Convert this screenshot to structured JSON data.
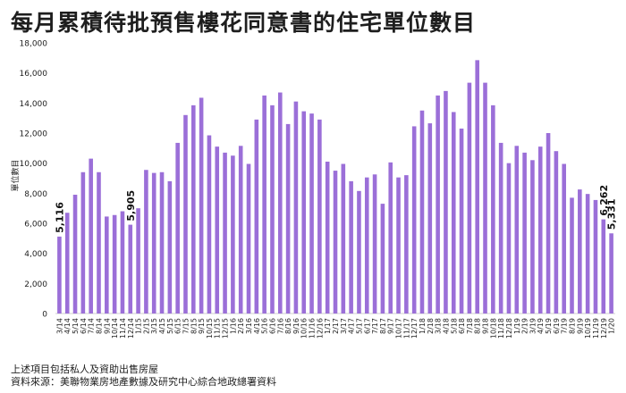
{
  "title": "每月累積待批預售樓花同意書的住宅單位數目",
  "notes": {
    "line1": "上述項目包括私人及資助出售房屋",
    "line2": "資料來源：美聯物業房地產數據及研究中心綜合地政總署資料"
  },
  "colors": {
    "bar": "#9b6fd8",
    "text": "#222222",
    "axis": "#cfcfcf"
  },
  "chart_data": {
    "type": "bar",
    "title": "每月累積待批預售樓花同意書的住宅單位數目",
    "ylabel": "單位數目",
    "xlabel": "",
    "ylim": [
      0,
      18000
    ],
    "yticks": [
      0,
      2000,
      4000,
      6000,
      8000,
      10000,
      12000,
      14000,
      16000,
      18000
    ],
    "ytick_labels": [
      "0",
      "2,000",
      "4,000",
      "6,000",
      "8,000",
      "10,000",
      "12,000",
      "14,000",
      "16,000",
      "18,000"
    ],
    "grid": false,
    "categories": [
      "3/14",
      "4/14",
      "5/14",
      "6/14",
      "7/14",
      "8/14",
      "9/14",
      "10/14",
      "11/14",
      "12/14",
      "1/15",
      "2/15",
      "3/15",
      "4/15",
      "5/15",
      "6/15",
      "7/15",
      "8/15",
      "9/15",
      "10/15",
      "11/15",
      "12/15",
      "1/16",
      "2/16",
      "3/16",
      "4/16",
      "5/16",
      "6/16",
      "7/16",
      "8/16",
      "9/16",
      "10/16",
      "11/16",
      "12/16",
      "1/17",
      "2/17",
      "3/17",
      "4/17",
      "5/17",
      "6/17",
      "7/17",
      "8/17",
      "9/17",
      "10/17",
      "11/17",
      "12/17",
      "1/18",
      "2/18",
      "3/18",
      "4/18",
      "5/18",
      "6/18",
      "7/18",
      "8/18",
      "9/18",
      "10/18",
      "11/18",
      "12/18",
      "1/19",
      "2/19",
      "3/19",
      "4/19",
      "5/19",
      "6/19",
      "7/19",
      "8/19",
      "9/19",
      "10/19",
      "11/19",
      "12/19",
      "1/20"
    ],
    "values": [
      5116,
      6700,
      7900,
      9400,
      10300,
      9400,
      6450,
      6550,
      6800,
      5905,
      7000,
      9550,
      9350,
      9400,
      8800,
      11350,
      13200,
      13850,
      14350,
      11850,
      11100,
      10700,
      10500,
      11150,
      9950,
      12900,
      14500,
      13850,
      14700,
      12600,
      14100,
      13450,
      13300,
      12900,
      10100,
      9500,
      9950,
      8800,
      8150,
      9050,
      9250,
      7300,
      10050,
      9050,
      9200,
      12450,
      13500,
      12650,
      14500,
      14800,
      13400,
      12300,
      15350,
      16850,
      15350,
      13850,
      11350,
      10000,
      11150,
      10700,
      10200,
      11100,
      12000,
      10800,
      9950,
      7700,
      8250,
      7950,
      7550,
      6262,
      5331
    ],
    "data_labels": [
      {
        "index": 0,
        "text": "5,116"
      },
      {
        "index": 9,
        "text": "5,905"
      },
      {
        "index": 69,
        "text": "6,262"
      },
      {
        "index": 70,
        "text": "5,331"
      }
    ]
  }
}
